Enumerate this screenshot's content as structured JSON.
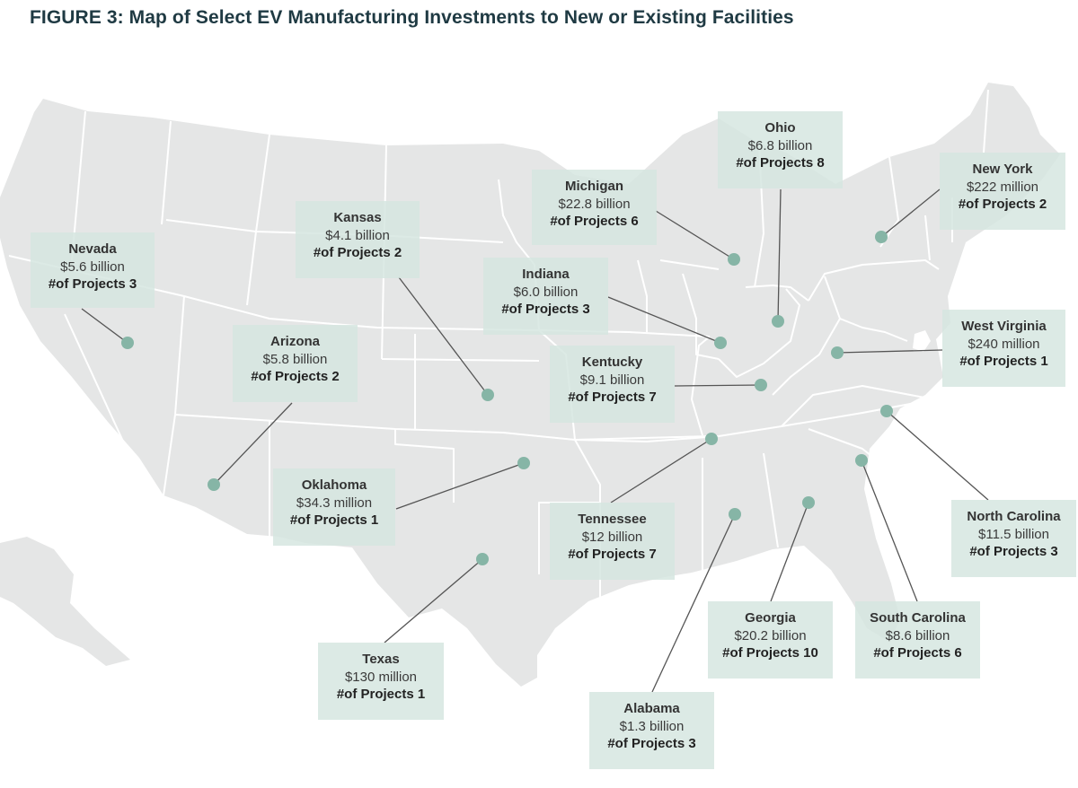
{
  "figure": {
    "title": "FIGURE 3: Map of Select EV Manufacturing Investments to New or Existing Facilities"
  },
  "colors": {
    "land": "#e5e6e6",
    "border": "#ffffff",
    "callout_bg": "#d4e5df",
    "marker": "#86b5a6",
    "leader": "#555555"
  },
  "locations": [
    {
      "id": "nevada",
      "state": "Nevada",
      "amount": "$5.6 billion",
      "projects": "#of Projects 3"
    },
    {
      "id": "kansas",
      "state": "Kansas",
      "amount": "$4.1 billion",
      "projects": "#of Projects 2"
    },
    {
      "id": "arizona",
      "state": "Arizona",
      "amount": "$5.8 billion",
      "projects": "#of Projects 2"
    },
    {
      "id": "oklahoma",
      "state": "Oklahoma",
      "amount": "$34.3 million",
      "projects": "#of Projects 1"
    },
    {
      "id": "texas",
      "state": "Texas",
      "amount": "$130 million",
      "projects": "#of Projects 1"
    },
    {
      "id": "michigan",
      "state": "Michigan",
      "amount": "$22.8 billion",
      "projects": "#of Projects 6"
    },
    {
      "id": "indiana",
      "state": "Indiana",
      "amount": "$6.0 billion",
      "projects": "#of Projects 3"
    },
    {
      "id": "kentucky",
      "state": "Kentucky",
      "amount": "$9.1 billion",
      "projects": "#of Projects 7"
    },
    {
      "id": "tennessee",
      "state": "Tennessee",
      "amount": "$12 billion",
      "projects": "#of Projects 7"
    },
    {
      "id": "alabama",
      "state": "Alabama",
      "amount": "$1.3 billion",
      "projects": "#of Projects 3"
    },
    {
      "id": "georgia",
      "state": "Georgia",
      "amount": "$20.2 billion",
      "projects": "#of Projects 10"
    },
    {
      "id": "south-carolina",
      "state": "South Carolina",
      "amount": "$8.6 billion",
      "projects": "#of Projects 6"
    },
    {
      "id": "north-carolina",
      "state": "North Carolina",
      "amount": "$11.5 billion",
      "projects": "#of Projects 3"
    },
    {
      "id": "west-virginia",
      "state": "West Virginia",
      "amount": "$240 million",
      "projects": "#of Projects 1"
    },
    {
      "id": "ohio",
      "state": "Ohio",
      "amount": "$6.8 billion",
      "projects": "#of Projects 8"
    },
    {
      "id": "new-york",
      "state": "New York",
      "amount": "$222 million",
      "projects": "#of Projects 2"
    }
  ]
}
